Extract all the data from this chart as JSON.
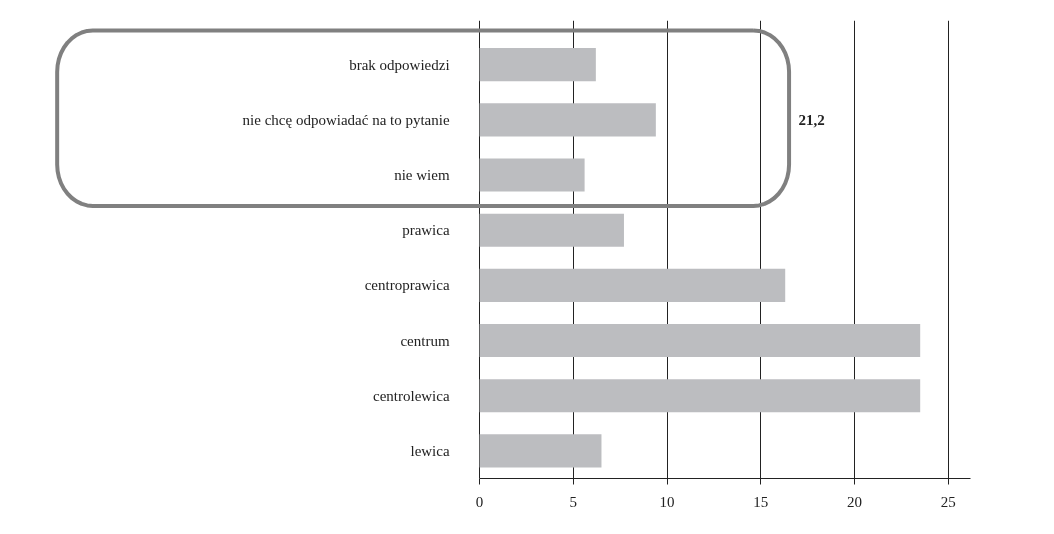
{
  "chart_data": {
    "type": "bar",
    "orientation": "horizontal",
    "categories": [
      "brak odpowiedzi",
      "nie chcę odpowiadać na to pytanie",
      "nie wiem",
      "prawica",
      "centroprawica",
      "centrum",
      "centrolewica",
      "lewica"
    ],
    "values": [
      6.2,
      9.4,
      5.6,
      7.7,
      16.3,
      23.5,
      23.5,
      6.5
    ],
    "color": "#bcbdc0",
    "xlim": [
      0,
      26.2
    ],
    "xticks": [
      0,
      5,
      10,
      15,
      20,
      25
    ],
    "grid": "x",
    "annotations": [
      "21,2"
    ]
  }
}
